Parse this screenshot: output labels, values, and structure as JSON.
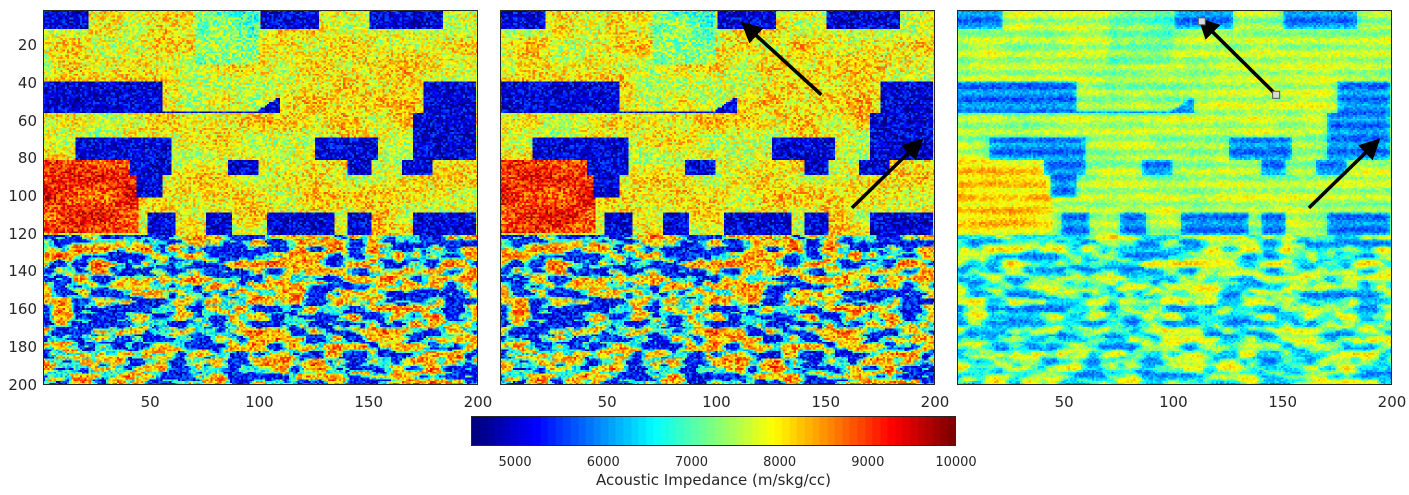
{
  "chart_data": {
    "type": "heatmap",
    "description_of_axes": "",
    "panels": [
      {
        "id": "panel-1",
        "x_ticks": [
          50,
          100,
          150,
          200
        ],
        "y_ticks": [
          20,
          40,
          60,
          80,
          100,
          120,
          140,
          160,
          180,
          200
        ],
        "xlim": [
          1,
          200
        ],
        "ylim": [
          1,
          200
        ],
        "noise": 1.0,
        "arrows": []
      },
      {
        "id": "panel-2",
        "x_ticks": [
          50,
          100,
          150,
          200
        ],
        "xlim": [
          1,
          200
        ],
        "ylim": [
          1,
          200
        ],
        "noise": 1.0,
        "arrows": [
          {
            "from": [
              148,
              46
            ],
            "to": [
              113,
              9
            ]
          },
          {
            "from": [
              162,
              106
            ],
            "to": [
              193,
              71
            ]
          }
        ]
      },
      {
        "id": "panel-3",
        "x_ticks": [
          50,
          100,
          150,
          200
        ],
        "xlim": [
          1,
          200
        ],
        "ylim": [
          1,
          200
        ],
        "noise": 0.45,
        "smooth": true,
        "arrows": [
          {
            "from": [
              147,
              46
            ],
            "to": [
              113,
              7
            ],
            "markers": true
          },
          {
            "from": [
              162,
              106
            ],
            "to": [
              193,
              71
            ]
          }
        ]
      }
    ],
    "colorbar": {
      "colormap": "jet",
      "range": [
        4500,
        10000
      ],
      "ticks": [
        5000,
        6000,
        7000,
        8000,
        9000,
        10000
      ],
      "label": "Acoustic Impedance (m/skg/cc)"
    }
  },
  "colors": {
    "arrow": "#000000",
    "marker_fill": "#d9d9d9"
  }
}
